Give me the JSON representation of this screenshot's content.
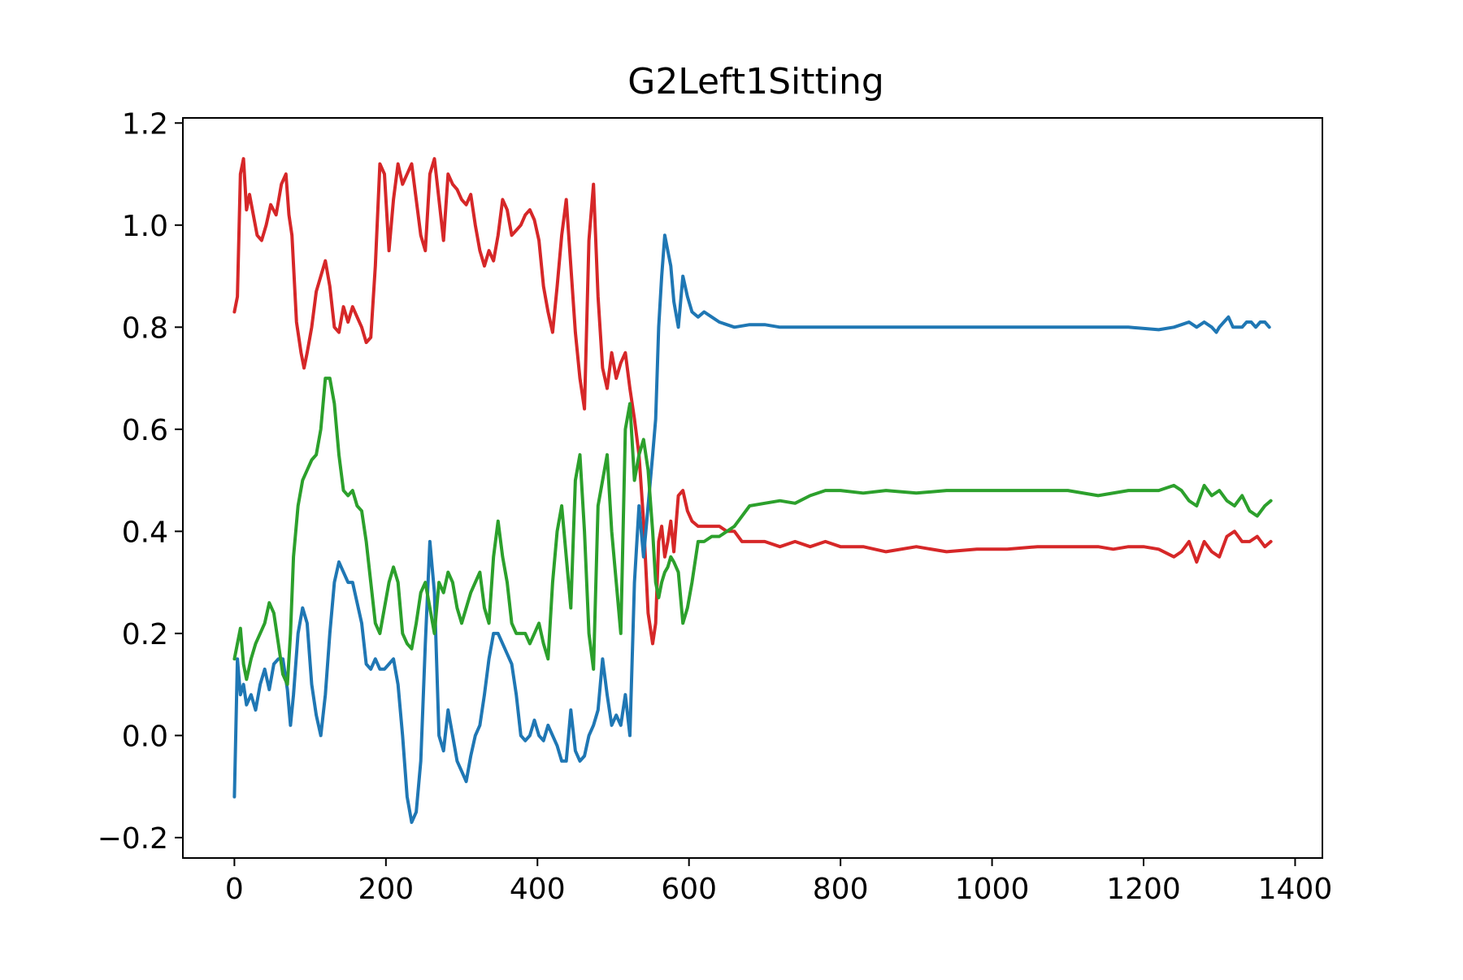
{
  "chart_data": {
    "type": "line",
    "title": "G2Left1Sitting",
    "xlabel": "",
    "ylabel": "",
    "xlim": [
      -68,
      1436
    ],
    "ylim": [
      -0.24,
      1.21
    ],
    "grid": false,
    "xticks": [
      0,
      200,
      400,
      600,
      800,
      1000,
      1200,
      1400
    ],
    "xtick_labels": [
      "0",
      "200",
      "400",
      "600",
      "800",
      "1000",
      "1200",
      "1400"
    ],
    "yticks": [
      -0.2,
      0.0,
      0.2,
      0.4,
      0.6,
      0.8,
      1.0,
      1.2
    ],
    "ytick_labels": [
      "−0.2",
      "0.0",
      "0.2",
      "0.4",
      "0.6",
      "0.8",
      "1.0",
      "1.2"
    ],
    "series": [
      {
        "color": "#d62728",
        "x": [
          0,
          4,
          8,
          12,
          16,
          20,
          25,
          30,
          36,
          42,
          48,
          55,
          62,
          68,
          72,
          76,
          82,
          88,
          92,
          96,
          102,
          108,
          114,
          120,
          126,
          132,
          138,
          144,
          150,
          156,
          162,
          168,
          174,
          180,
          186,
          192,
          198,
          204,
          210,
          216,
          222,
          228,
          234,
          240,
          246,
          252,
          258,
          264,
          270,
          276,
          282,
          288,
          294,
          300,
          306,
          312,
          318,
          324,
          330,
          336,
          342,
          348,
          354,
          360,
          366,
          372,
          378,
          384,
          390,
          396,
          402,
          408,
          414,
          420,
          426,
          432,
          438,
          444,
          450,
          456,
          462,
          468,
          474,
          480,
          486,
          492,
          498,
          504,
          510,
          516,
          522,
          528,
          534,
          540,
          546,
          552,
          556,
          560,
          564,
          568,
          572,
          576,
          580,
          586,
          592,
          598,
          604,
          612,
          620,
          630,
          640,
          650,
          660,
          670,
          680,
          700,
          720,
          740,
          760,
          780,
          800,
          830,
          860,
          900,
          940,
          980,
          1020,
          1060,
          1100,
          1120,
          1140,
          1160,
          1180,
          1200,
          1220,
          1240,
          1250,
          1260,
          1270,
          1280,
          1290,
          1300,
          1310,
          1320,
          1330,
          1340,
          1350,
          1360,
          1368
        ],
        "y": [
          0.83,
          0.86,
          1.1,
          1.13,
          1.03,
          1.06,
          1.02,
          0.98,
          0.97,
          1.0,
          1.04,
          1.02,
          1.08,
          1.1,
          1.02,
          0.98,
          0.81,
          0.75,
          0.72,
          0.75,
          0.8,
          0.87,
          0.9,
          0.93,
          0.88,
          0.8,
          0.79,
          0.84,
          0.81,
          0.84,
          0.82,
          0.8,
          0.77,
          0.78,
          0.92,
          1.12,
          1.1,
          0.95,
          1.05,
          1.12,
          1.08,
          1.1,
          1.12,
          1.05,
          0.98,
          0.95,
          1.1,
          1.13,
          1.05,
          0.97,
          1.1,
          1.08,
          1.07,
          1.05,
          1.04,
          1.06,
          1.0,
          0.95,
          0.92,
          0.95,
          0.93,
          0.98,
          1.05,
          1.03,
          0.98,
          0.99,
          1.0,
          1.02,
          1.03,
          1.01,
          0.97,
          0.88,
          0.83,
          0.79,
          0.88,
          0.98,
          1.05,
          0.92,
          0.79,
          0.7,
          0.64,
          0.97,
          1.08,
          0.86,
          0.72,
          0.68,
          0.75,
          0.7,
          0.73,
          0.75,
          0.68,
          0.62,
          0.55,
          0.42,
          0.24,
          0.18,
          0.22,
          0.38,
          0.41,
          0.35,
          0.38,
          0.42,
          0.36,
          0.47,
          0.48,
          0.44,
          0.42,
          0.41,
          0.41,
          0.41,
          0.41,
          0.4,
          0.4,
          0.38,
          0.38,
          0.38,
          0.37,
          0.38,
          0.37,
          0.38,
          0.37,
          0.37,
          0.36,
          0.37,
          0.36,
          0.365,
          0.365,
          0.37,
          0.37,
          0.37,
          0.37,
          0.365,
          0.37,
          0.37,
          0.365,
          0.35,
          0.36,
          0.38,
          0.34,
          0.38,
          0.36,
          0.35,
          0.39,
          0.4,
          0.38,
          0.38,
          0.39,
          0.37,
          0.38
        ]
      },
      {
        "color": "#1f77b4",
        "x": [
          0,
          4,
          8,
          12,
          16,
          22,
          28,
          34,
          40,
          46,
          52,
          58,
          64,
          70,
          74,
          78,
          84,
          90,
          96,
          102,
          108,
          114,
          120,
          126,
          132,
          138,
          144,
          150,
          156,
          162,
          168,
          174,
          180,
          186,
          192,
          198,
          204,
          210,
          216,
          222,
          228,
          234,
          240,
          246,
          252,
          258,
          264,
          270,
          276,
          282,
          288,
          294,
          300,
          306,
          312,
          318,
          324,
          330,
          336,
          342,
          348,
          354,
          360,
          366,
          372,
          378,
          384,
          390,
          396,
          402,
          408,
          414,
          420,
          426,
          432,
          438,
          444,
          450,
          456,
          462,
          468,
          474,
          480,
          486,
          492,
          498,
          504,
          510,
          516,
          522,
          528,
          534,
          540,
          546,
          552,
          556,
          560,
          564,
          568,
          572,
          576,
          580,
          586,
          592,
          598,
          604,
          612,
          620,
          630,
          640,
          660,
          680,
          700,
          720,
          740,
          760,
          780,
          800,
          830,
          860,
          900,
          940,
          980,
          1020,
          1060,
          1100,
          1140,
          1180,
          1220,
          1240,
          1250,
          1260,
          1270,
          1280,
          1290,
          1296,
          1300,
          1306,
          1312,
          1318,
          1324,
          1330,
          1336,
          1342,
          1348,
          1354,
          1360,
          1366
        ],
        "y": [
          -0.12,
          0.15,
          0.08,
          0.1,
          0.06,
          0.08,
          0.05,
          0.1,
          0.13,
          0.09,
          0.14,
          0.15,
          0.15,
          0.09,
          0.02,
          0.08,
          0.2,
          0.25,
          0.22,
          0.1,
          0.04,
          0.0,
          0.08,
          0.2,
          0.3,
          0.34,
          0.32,
          0.3,
          0.3,
          0.26,
          0.22,
          0.14,
          0.13,
          0.15,
          0.13,
          0.13,
          0.14,
          0.15,
          0.1,
          0.0,
          -0.12,
          -0.17,
          -0.15,
          -0.05,
          0.18,
          0.38,
          0.28,
          0.0,
          -0.03,
          0.05,
          0.0,
          -0.05,
          -0.07,
          -0.09,
          -0.04,
          0.0,
          0.02,
          0.08,
          0.15,
          0.2,
          0.2,
          0.18,
          0.16,
          0.14,
          0.08,
          0.0,
          -0.01,
          0.0,
          0.03,
          0.0,
          -0.01,
          0.02,
          0.0,
          -0.02,
          -0.05,
          -0.05,
          0.05,
          -0.03,
          -0.05,
          -0.04,
          0.0,
          0.02,
          0.05,
          0.15,
          0.08,
          0.02,
          0.04,
          0.02,
          0.08,
          0.0,
          0.3,
          0.45,
          0.35,
          0.45,
          0.55,
          0.62,
          0.8,
          0.9,
          0.98,
          0.95,
          0.92,
          0.85,
          0.8,
          0.9,
          0.86,
          0.83,
          0.82,
          0.83,
          0.82,
          0.81,
          0.8,
          0.805,
          0.805,
          0.8,
          0.8,
          0.8,
          0.8,
          0.8,
          0.8,
          0.8,
          0.8,
          0.8,
          0.8,
          0.8,
          0.8,
          0.8,
          0.8,
          0.8,
          0.795,
          0.8,
          0.805,
          0.81,
          0.8,
          0.81,
          0.8,
          0.79,
          0.8,
          0.81,
          0.82,
          0.8,
          0.8,
          0.8,
          0.81,
          0.81,
          0.8,
          0.81,
          0.81,
          0.8
        ]
      },
      {
        "color": "#2ca02c",
        "x": [
          0,
          4,
          8,
          12,
          16,
          22,
          28,
          34,
          40,
          46,
          52,
          58,
          64,
          70,
          74,
          78,
          84,
          90,
          96,
          102,
          108,
          114,
          120,
          126,
          132,
          138,
          144,
          150,
          156,
          162,
          168,
          174,
          180,
          186,
          192,
          198,
          204,
          210,
          216,
          222,
          228,
          234,
          240,
          246,
          252,
          258,
          264,
          270,
          276,
          282,
          288,
          294,
          300,
          306,
          312,
          318,
          324,
          330,
          336,
          342,
          348,
          354,
          360,
          366,
          372,
          378,
          384,
          390,
          396,
          402,
          408,
          414,
          420,
          426,
          432,
          438,
          444,
          450,
          456,
          462,
          468,
          474,
          480,
          486,
          492,
          498,
          504,
          510,
          516,
          522,
          528,
          534,
          540,
          546,
          552,
          556,
          560,
          564,
          568,
          572,
          576,
          580,
          586,
          592,
          598,
          604,
          612,
          620,
          630,
          640,
          660,
          680,
          700,
          720,
          740,
          760,
          780,
          800,
          830,
          860,
          900,
          940,
          980,
          1020,
          1060,
          1100,
          1140,
          1180,
          1220,
          1240,
          1250,
          1260,
          1270,
          1280,
          1290,
          1300,
          1310,
          1320,
          1330,
          1340,
          1350,
          1360,
          1368
        ],
        "y": [
          0.15,
          0.18,
          0.21,
          0.14,
          0.11,
          0.15,
          0.18,
          0.2,
          0.22,
          0.26,
          0.24,
          0.18,
          0.12,
          0.1,
          0.2,
          0.35,
          0.45,
          0.5,
          0.52,
          0.54,
          0.55,
          0.6,
          0.7,
          0.7,
          0.65,
          0.55,
          0.48,
          0.47,
          0.48,
          0.45,
          0.44,
          0.38,
          0.3,
          0.22,
          0.2,
          0.25,
          0.3,
          0.33,
          0.3,
          0.2,
          0.18,
          0.17,
          0.22,
          0.28,
          0.3,
          0.25,
          0.2,
          0.3,
          0.28,
          0.32,
          0.3,
          0.25,
          0.22,
          0.25,
          0.28,
          0.3,
          0.32,
          0.25,
          0.22,
          0.35,
          0.42,
          0.35,
          0.3,
          0.22,
          0.2,
          0.2,
          0.2,
          0.18,
          0.2,
          0.22,
          0.18,
          0.15,
          0.3,
          0.4,
          0.45,
          0.35,
          0.25,
          0.5,
          0.55,
          0.4,
          0.2,
          0.13,
          0.45,
          0.5,
          0.55,
          0.4,
          0.3,
          0.2,
          0.6,
          0.65,
          0.5,
          0.55,
          0.58,
          0.52,
          0.4,
          0.3,
          0.27,
          0.3,
          0.32,
          0.33,
          0.35,
          0.34,
          0.32,
          0.22,
          0.25,
          0.3,
          0.38,
          0.38,
          0.39,
          0.39,
          0.41,
          0.45,
          0.455,
          0.46,
          0.455,
          0.47,
          0.48,
          0.48,
          0.475,
          0.48,
          0.475,
          0.48,
          0.48,
          0.48,
          0.48,
          0.48,
          0.47,
          0.48,
          0.48,
          0.49,
          0.48,
          0.46,
          0.45,
          0.49,
          0.47,
          0.48,
          0.46,
          0.45,
          0.47,
          0.44,
          0.43,
          0.45,
          0.46
        ]
      }
    ]
  }
}
